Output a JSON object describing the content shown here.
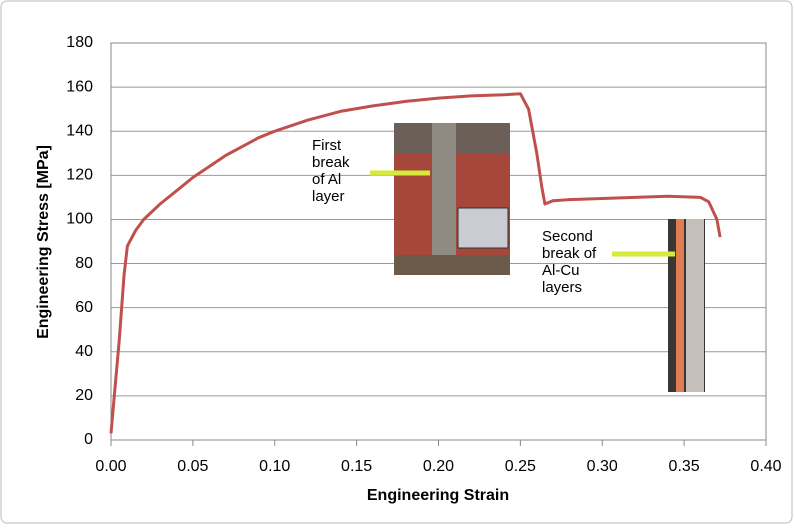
{
  "chart_data": {
    "type": "line",
    "x_label": "Engineering Strain",
    "y_label": "Engineering Stress  [MPa]",
    "x": [
      0,
      0.002,
      0.005,
      0.008,
      0.01,
      0.015,
      0.02,
      0.03,
      0.04,
      0.05,
      0.06,
      0.07,
      0.08,
      0.09,
      0.1,
      0.12,
      0.14,
      0.16,
      0.18,
      0.2,
      0.22,
      0.24,
      0.25,
      0.255,
      0.26,
      0.263,
      0.265,
      0.27,
      0.28,
      0.3,
      0.32,
      0.34,
      0.36,
      0.365,
      0.37,
      0.372
    ],
    "values": [
      3,
      20,
      45,
      75,
      88,
      95,
      100,
      107,
      113,
      119,
      124,
      129,
      133,
      137,
      140,
      145,
      149,
      151.5,
      153.5,
      155,
      156,
      156.5,
      157,
      150,
      130,
      115,
      107,
      108.5,
      109,
      109.5,
      110,
      110.5,
      110,
      108,
      100,
      92
    ],
    "color": "#c0504d",
    "xlim": [
      0,
      0.4
    ],
    "xticks": [
      {
        "value": 0,
        "label": "0.00"
      },
      {
        "value": 0.05,
        "label": "0.05"
      },
      {
        "value": 0.1,
        "label": "0.10"
      },
      {
        "value": 0.15,
        "label": "0.15"
      },
      {
        "value": 0.2,
        "label": "0.20"
      },
      {
        "value": 0.25,
        "label": "0.25"
      },
      {
        "value": 0.3,
        "label": "0.30"
      },
      {
        "value": 0.35,
        "label": "0.35"
      },
      {
        "value": 0.4,
        "label": "0.40"
      }
    ],
    "ylim": [
      0,
      180
    ],
    "yticks": [
      0,
      20,
      40,
      60,
      80,
      100,
      120,
      140,
      160,
      180
    ],
    "grid": true,
    "annotations": [
      {
        "lines": [
          "First",
          "break",
          "of Al",
          "layer"
        ]
      },
      {
        "lines": [
          "Second",
          "break of",
          "Al-Cu",
          "layers"
        ]
      }
    ]
  }
}
